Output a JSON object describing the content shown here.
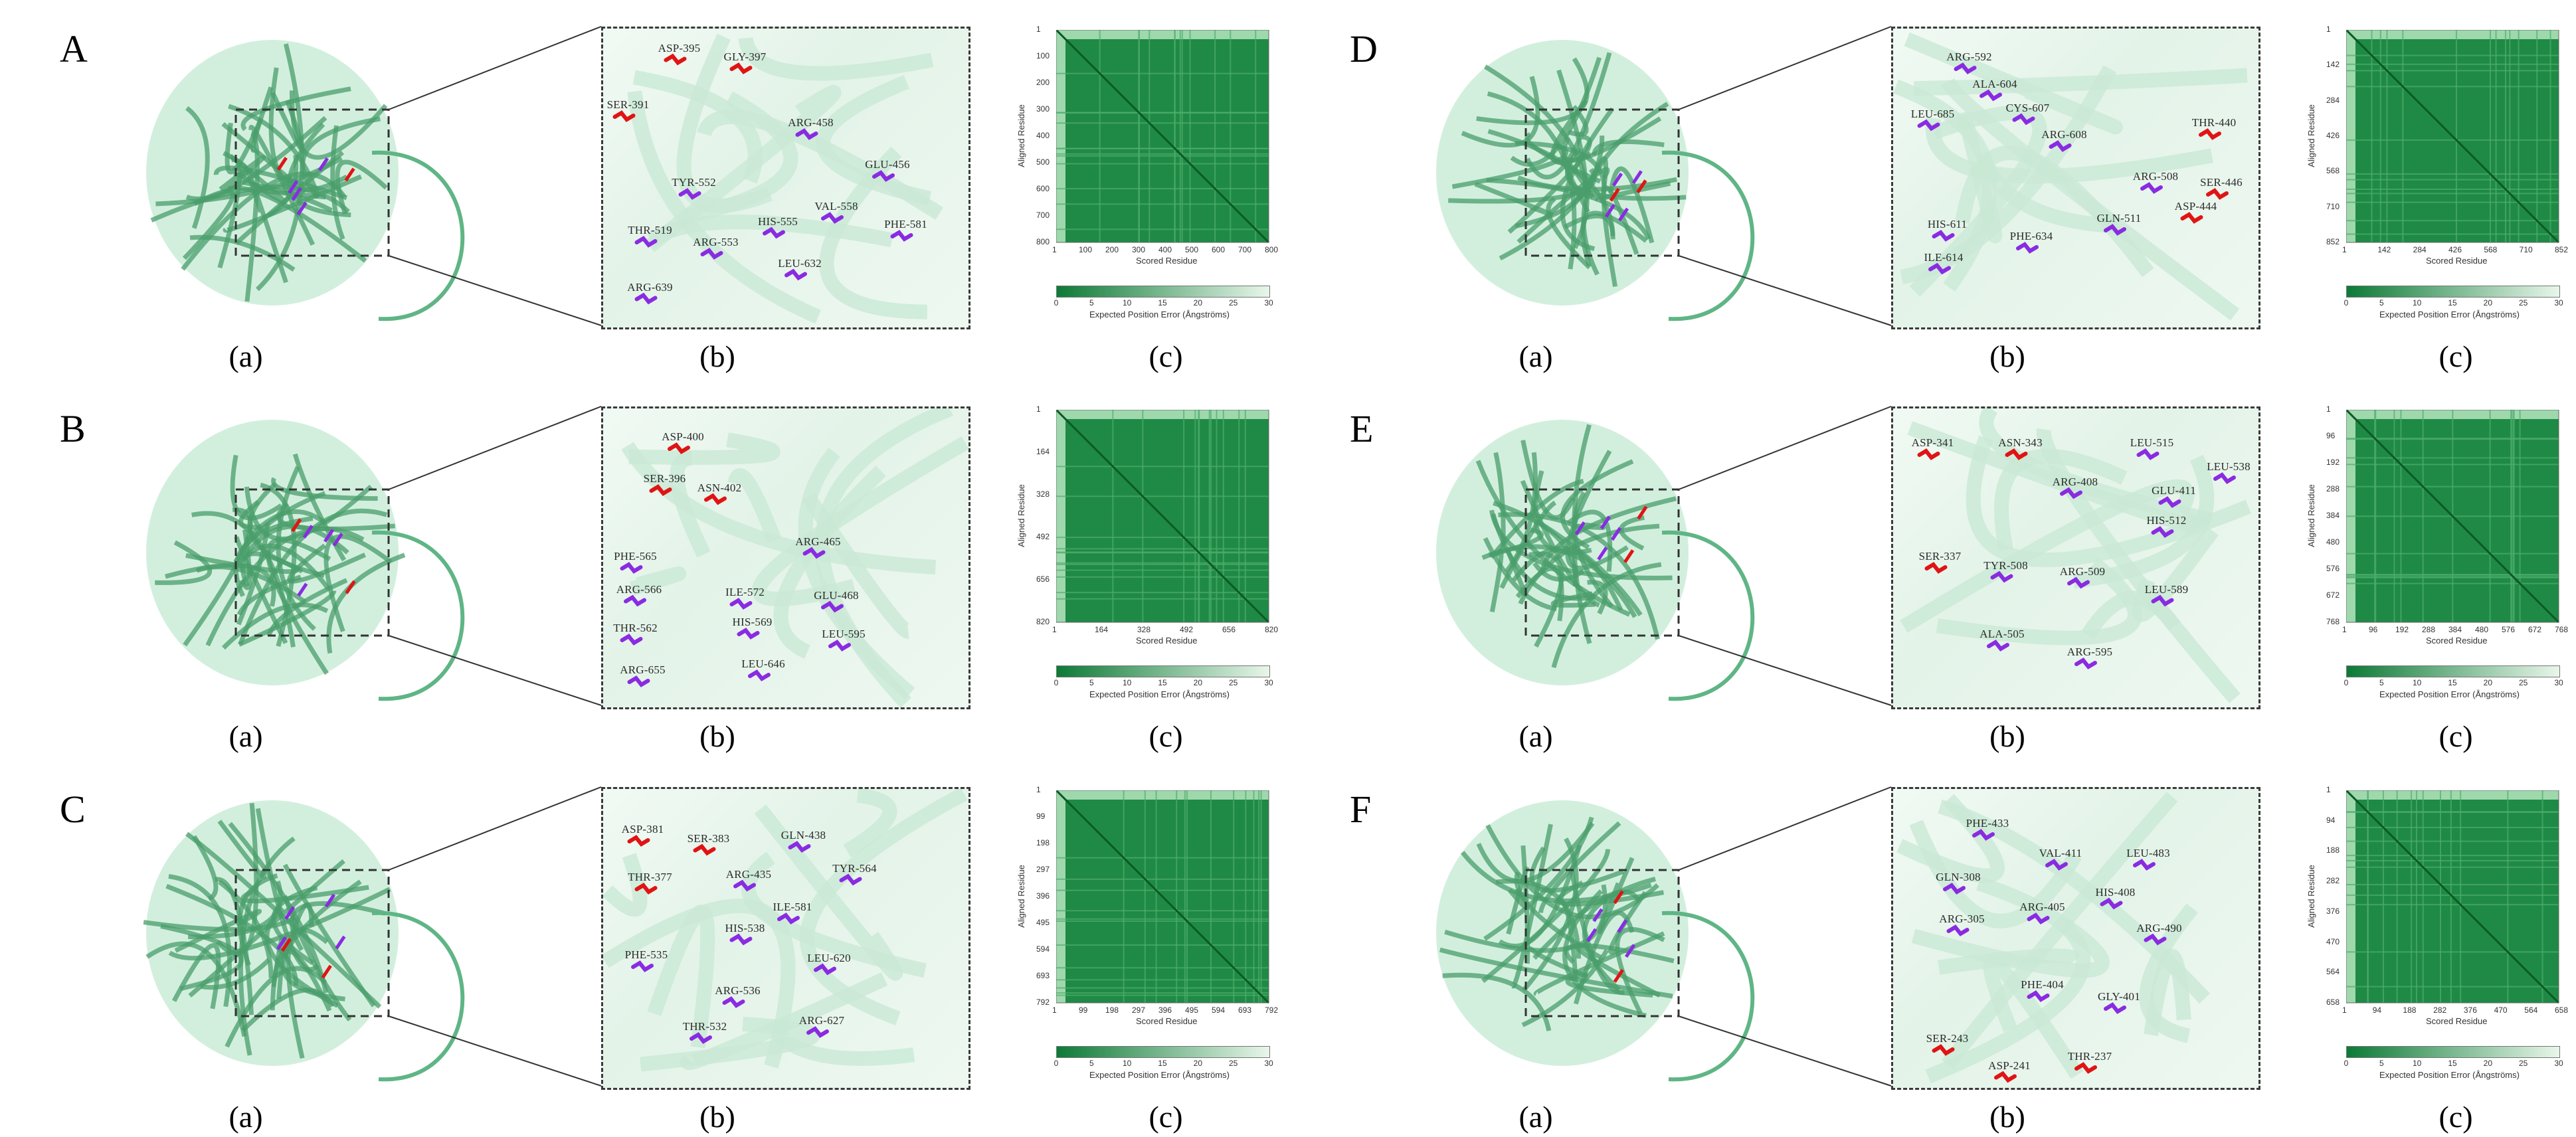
{
  "subfigure_labels": {
    "a": "(a)",
    "b": "(b)",
    "c": "(c)"
  },
  "heatmap_axis": {
    "xlabel": "Scored Residue",
    "ylabel": "Aligned Residue",
    "colorbar_label": "Expected Position Error (Ångströms)",
    "colorbar_ticks": [
      "0",
      "5",
      "10",
      "15",
      "20",
      "25",
      "30"
    ]
  },
  "colors": {
    "catalytic": "#e01414",
    "binding": "#8a2be2",
    "protein": "#7fd1a0",
    "heat_dark": "#0d7a36",
    "heat_light": "#e8f6ea"
  },
  "panels": [
    {
      "letter": "A",
      "residues": [
        {
          "name": "ASP-395",
          "type": "catalytic"
        },
        {
          "name": "GLY-397",
          "type": "catalytic"
        },
        {
          "name": "SER-391",
          "type": "catalytic"
        },
        {
          "name": "ARG-458",
          "type": "binding"
        },
        {
          "name": "TYR-552",
          "type": "binding"
        },
        {
          "name": "GLU-456",
          "type": "binding"
        },
        {
          "name": "VAL-558",
          "type": "binding"
        },
        {
          "name": "THR-519",
          "type": "binding"
        },
        {
          "name": "HIS-555",
          "type": "binding"
        },
        {
          "name": "PHE-581",
          "type": "binding"
        },
        {
          "name": "ARG-553",
          "type": "binding"
        },
        {
          "name": "LEU-632",
          "type": "binding"
        },
        {
          "name": "ARG-639",
          "type": "binding"
        }
      ],
      "heatmap": {
        "x_ticks": [
          "1",
          "100",
          "200",
          "300",
          "400",
          "500",
          "600",
          "700",
          "800"
        ],
        "y_ticks": [
          "1",
          "100",
          "200",
          "300",
          "400",
          "500",
          "600",
          "700",
          "800"
        ]
      }
    },
    {
      "letter": "B",
      "residues": [
        {
          "name": "ASP-400",
          "type": "catalytic"
        },
        {
          "name": "SER-396",
          "type": "catalytic"
        },
        {
          "name": "ASN-402",
          "type": "catalytic"
        },
        {
          "name": "PHE-565",
          "type": "binding"
        },
        {
          "name": "ARG-465",
          "type": "binding"
        },
        {
          "name": "ARG-566",
          "type": "binding"
        },
        {
          "name": "ILE-572",
          "type": "binding"
        },
        {
          "name": "GLU-468",
          "type": "binding"
        },
        {
          "name": "THR-562",
          "type": "binding"
        },
        {
          "name": "HIS-569",
          "type": "binding"
        },
        {
          "name": "LEU-595",
          "type": "binding"
        },
        {
          "name": "ARG-655",
          "type": "binding"
        },
        {
          "name": "LEU-646",
          "type": "binding"
        }
      ],
      "heatmap": {
        "x_ticks": [
          "1",
          "164",
          "328",
          "492",
          "656",
          "820"
        ],
        "y_ticks": [
          "1",
          "164",
          "328",
          "492",
          "656",
          "820"
        ]
      }
    },
    {
      "letter": "C",
      "residues": [
        {
          "name": "ASP-381",
          "type": "catalytic"
        },
        {
          "name": "SER-383",
          "type": "catalytic"
        },
        {
          "name": "THR-377",
          "type": "catalytic"
        },
        {
          "name": "GLN-438",
          "type": "binding"
        },
        {
          "name": "ARG-435",
          "type": "binding"
        },
        {
          "name": "TYR-564",
          "type": "binding"
        },
        {
          "name": "ILE-581",
          "type": "binding"
        },
        {
          "name": "HIS-538",
          "type": "binding"
        },
        {
          "name": "PHE-535",
          "type": "binding"
        },
        {
          "name": "LEU-620",
          "type": "binding"
        },
        {
          "name": "ARG-536",
          "type": "binding"
        },
        {
          "name": "ARG-627",
          "type": "binding"
        },
        {
          "name": "THR-532",
          "type": "binding"
        }
      ],
      "heatmap": {
        "x_ticks": [
          "1",
          "99",
          "198",
          "297",
          "396",
          "495",
          "594",
          "693",
          "792"
        ],
        "y_ticks": [
          "1",
          "99",
          "198",
          "297",
          "396",
          "495",
          "594",
          "693",
          "792"
        ]
      }
    },
    {
      "letter": "D",
      "residues": [
        {
          "name": "ARG-592",
          "type": "binding"
        },
        {
          "name": "ALA-604",
          "type": "binding"
        },
        {
          "name": "LEU-685",
          "type": "binding"
        },
        {
          "name": "CYS-607",
          "type": "binding"
        },
        {
          "name": "ARG-608",
          "type": "binding"
        },
        {
          "name": "THR-440",
          "type": "catalytic"
        },
        {
          "name": "SER-446",
          "type": "catalytic"
        },
        {
          "name": "ARG-508",
          "type": "binding"
        },
        {
          "name": "HIS-611",
          "type": "binding"
        },
        {
          "name": "GLN-511",
          "type": "binding"
        },
        {
          "name": "ASP-444",
          "type": "catalytic"
        },
        {
          "name": "PHE-634",
          "type": "binding"
        },
        {
          "name": "ILE-614",
          "type": "binding"
        }
      ],
      "heatmap": {
        "x_ticks": [
          "1",
          "142",
          "284",
          "426",
          "568",
          "710",
          "852"
        ],
        "y_ticks": [
          "1",
          "142",
          "284",
          "426",
          "568",
          "710",
          "852"
        ]
      }
    },
    {
      "letter": "E",
      "residues": [
        {
          "name": "ASP-341",
          "type": "catalytic"
        },
        {
          "name": "ASN-343",
          "type": "catalytic"
        },
        {
          "name": "LEU-515",
          "type": "binding"
        },
        {
          "name": "LEU-538",
          "type": "binding"
        },
        {
          "name": "ARG-408",
          "type": "binding"
        },
        {
          "name": "GLU-411",
          "type": "binding"
        },
        {
          "name": "HIS-512",
          "type": "binding"
        },
        {
          "name": "SER-337",
          "type": "catalytic"
        },
        {
          "name": "TYR-508",
          "type": "binding"
        },
        {
          "name": "ARG-509",
          "type": "binding"
        },
        {
          "name": "LEU-589",
          "type": "binding"
        },
        {
          "name": "ALA-505",
          "type": "binding"
        },
        {
          "name": "ARG-595",
          "type": "binding"
        }
      ],
      "heatmap": {
        "x_ticks": [
          "1",
          "96",
          "192",
          "288",
          "384",
          "480",
          "576",
          "672",
          "768"
        ],
        "y_ticks": [
          "1",
          "96",
          "192",
          "288",
          "384",
          "480",
          "576",
          "672",
          "768"
        ]
      }
    },
    {
      "letter": "F",
      "residues": [
        {
          "name": "PHE-433",
          "type": "binding"
        },
        {
          "name": "VAL-411",
          "type": "binding"
        },
        {
          "name": "LEU-483",
          "type": "binding"
        },
        {
          "name": "GLN-308",
          "type": "binding"
        },
        {
          "name": "HIS-408",
          "type": "binding"
        },
        {
          "name": "ARG-405",
          "type": "binding"
        },
        {
          "name": "ARG-305",
          "type": "binding"
        },
        {
          "name": "ARG-490",
          "type": "binding"
        },
        {
          "name": "PHE-404",
          "type": "binding"
        },
        {
          "name": "GLY-401",
          "type": "binding"
        },
        {
          "name": "SER-243",
          "type": "catalytic"
        },
        {
          "name": "THR-237",
          "type": "catalytic"
        },
        {
          "name": "ASP-241",
          "type": "catalytic"
        }
      ],
      "heatmap": {
        "x_ticks": [
          "1",
          "94",
          "188",
          "282",
          "376",
          "470",
          "564",
          "658"
        ],
        "y_ticks": [
          "1",
          "94",
          "188",
          "282",
          "376",
          "470",
          "564",
          "658"
        ]
      }
    }
  ]
}
